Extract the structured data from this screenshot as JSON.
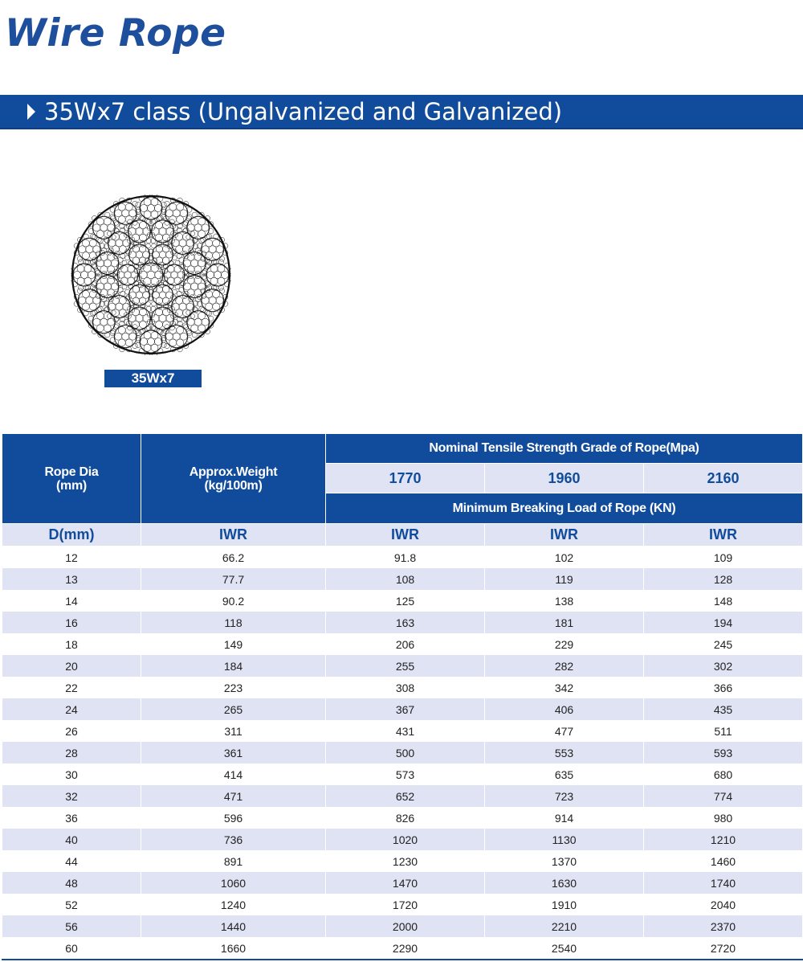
{
  "page": {
    "title": "Wire Rope",
    "section": "35Wx7 class (Ungalvanized and Galvanized)",
    "figure_caption": "35Wx7"
  },
  "colors": {
    "brand_blue": "#114c9c",
    "row_stripe": "#dfe3f3",
    "title_blue": "#1d4f9d"
  },
  "icons": {
    "section_marker": "triangle-right-icon",
    "figure": "rope-cross-section"
  },
  "table": {
    "header": {
      "rope_dia": "Rope Dia\n(mm)",
      "weight": "Approx.Weight\n(kg/100m)",
      "strength_group": "Nominal Tensile Strength Grade of Rope(Mpa)",
      "grades": [
        "1770",
        "1960",
        "2160"
      ],
      "load_group": "Minimum Breaking Load of Rope (KN)",
      "units": [
        "D(mm)",
        "IWR",
        "IWR",
        "IWR",
        "IWR"
      ]
    },
    "rows": [
      [
        "12",
        "66.2",
        "91.8",
        "102",
        "109"
      ],
      [
        "13",
        "77.7",
        "108",
        "119",
        "128"
      ],
      [
        "14",
        "90.2",
        "125",
        "138",
        "148"
      ],
      [
        "16",
        "118",
        "163",
        "181",
        "194"
      ],
      [
        "18",
        "149",
        "206",
        "229",
        "245"
      ],
      [
        "20",
        "184",
        "255",
        "282",
        "302"
      ],
      [
        "22",
        "223",
        "308",
        "342",
        "366"
      ],
      [
        "24",
        "265",
        "367",
        "406",
        "435"
      ],
      [
        "26",
        "311",
        "431",
        "477",
        "511"
      ],
      [
        "28",
        "361",
        "500",
        "553",
        "593"
      ],
      [
        "30",
        "414",
        "573",
        "635",
        "680"
      ],
      [
        "32",
        "471",
        "652",
        "723",
        "774"
      ],
      [
        "36",
        "596",
        "826",
        "914",
        "980"
      ],
      [
        "40",
        "736",
        "1020",
        "1130",
        "1210"
      ],
      [
        "44",
        "891",
        "1230",
        "1370",
        "1460"
      ],
      [
        "48",
        "1060",
        "1470",
        "1630",
        "1740"
      ],
      [
        "52",
        "1240",
        "1720",
        "1910",
        "2040"
      ],
      [
        "56",
        "1440",
        "2000",
        "2210",
        "2370"
      ],
      [
        "60",
        "1660",
        "2290",
        "2540",
        "2720"
      ]
    ]
  }
}
